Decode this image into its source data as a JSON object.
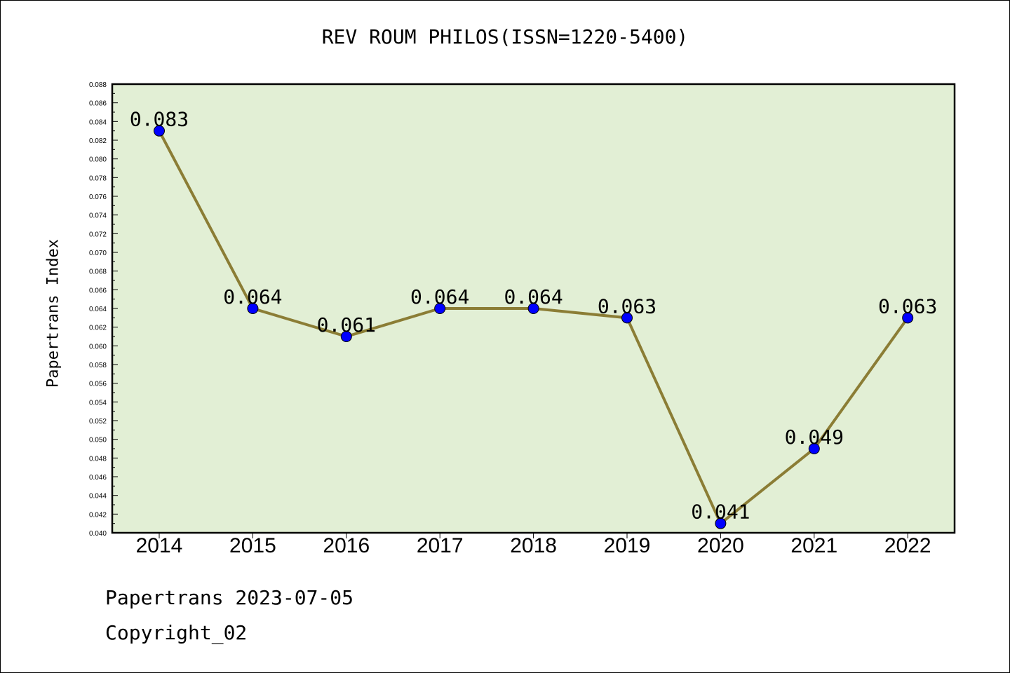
{
  "title": "REV ROUM PHILOS(ISSN=1220-5400)",
  "footer": {
    "line1": "Papertrans 2023-07-05",
    "line2": "Copyright_02"
  },
  "colors": {
    "plot_bg": "#e2efd5",
    "line": "#8b7d35",
    "marker": "#0000ff",
    "axis": "#000000"
  },
  "chart_data": {
    "type": "line",
    "title": "REV ROUM PHILOS(ISSN=1220-5400)",
    "xlabel": "",
    "ylabel": "Papertrans Index",
    "categories": [
      "2014",
      "2015",
      "2016",
      "2017",
      "2018",
      "2019",
      "2020",
      "2021",
      "2022"
    ],
    "series": [
      {
        "values": [
          0.083,
          0.064,
          0.061,
          0.064,
          0.064,
          0.063,
          0.041,
          0.049,
          0.063
        ],
        "labels": [
          "0.083",
          "0.064",
          "0.061",
          "0.064",
          "0.064",
          "0.063",
          "0.041",
          "0.049",
          "0.063"
        ]
      }
    ],
    "ylim": [
      0.04,
      0.088
    ],
    "yticks": [
      "0.040",
      "0.042",
      "0.044",
      "0.046",
      "0.048",
      "0.050",
      "0.052",
      "0.054",
      "0.056",
      "0.058",
      "0.060",
      "0.062",
      "0.064",
      "0.066",
      "0.068",
      "0.070",
      "0.072",
      "0.074",
      "0.076",
      "0.078",
      "0.080",
      "0.082",
      "0.084",
      "0.086",
      "0.088"
    ],
    "grid": false,
    "legend": "none",
    "markers": true
  }
}
